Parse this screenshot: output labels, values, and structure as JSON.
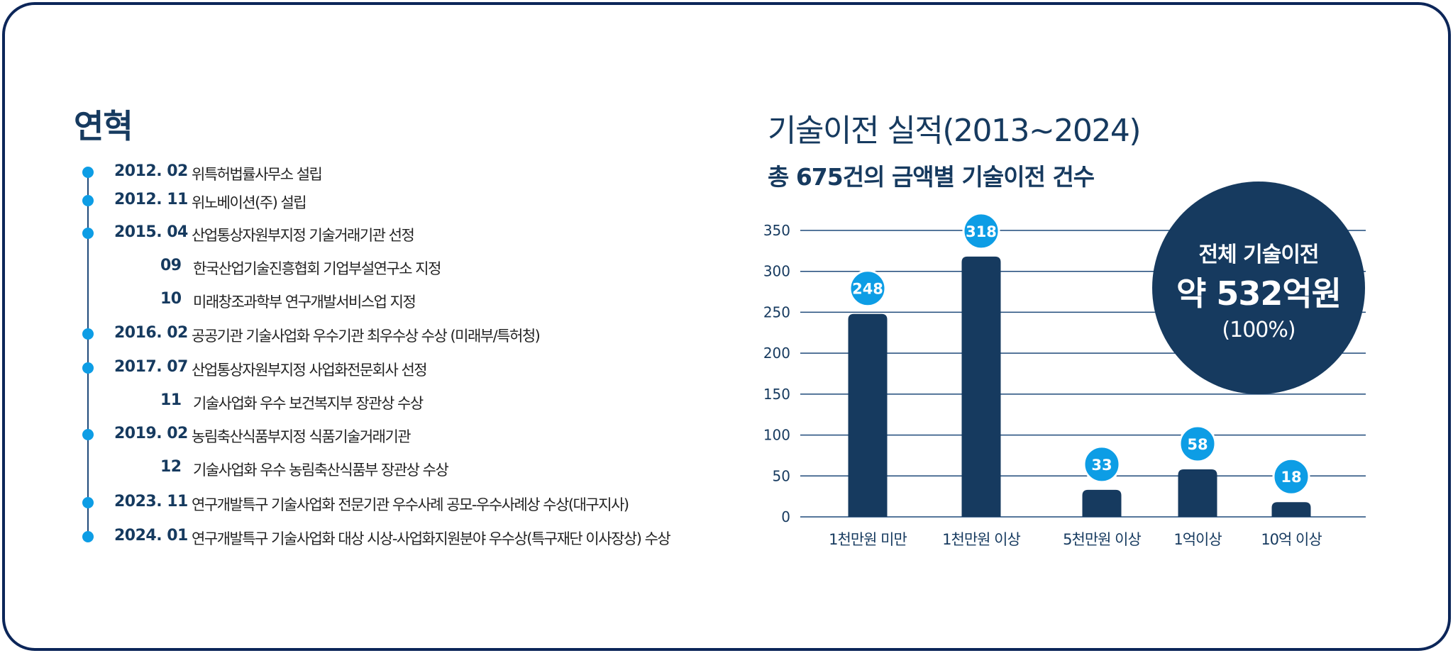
{
  "history": {
    "title": "연혁",
    "entries": [
      {
        "date": "2012. 02",
        "text": "위특허법률사무소 설립"
      },
      {
        "date": "2012. 11",
        "text": "위노베이션(주) 설립"
      },
      {
        "date": "2015. 04",
        "text": "산업통상자원부지정 기술거래기관 선정"
      },
      {
        "date": "09",
        "text": "한국산업기술진흥협회 기업부설연구소 지정"
      },
      {
        "date": "10",
        "text": "미래창조과학부 연구개발서비스업 지정"
      },
      {
        "date": "2016. 02",
        "text": "공공기관 기술사업화 우수기관 최우수상 수상 (미래부/특허청)"
      },
      {
        "date": "2017. 07",
        "text": "산업통상자원부지정 사업화전문회사 선정"
      },
      {
        "date": "11",
        "text": "기술사업화 우수 보건복지부 장관상 수상"
      },
      {
        "date": "2019. 02",
        "text": "농림축산식품부지정 식품기술거래기관"
      },
      {
        "date": "12",
        "text": "기술사업화 우수 농림축산식품부 장관상 수상"
      },
      {
        "date": "2023. 11",
        "text": "연구개발특구 기술사업화 전문기관 우수사례 공모-우수사례상 수상(대구지사)"
      },
      {
        "date": "2024. 01",
        "text": "연구개발특구 기술사업화 대상 시상-사업화지원분야 우수상(특구재단 이사장상) 수상"
      }
    ]
  },
  "chart_data": {
    "type": "bar",
    "title": "기술이전 실적(2013~2024)",
    "subtitle": "총 675건의 금액별 기술이전 건수",
    "categories": [
      "1천만원 미만",
      "1천만원 이상",
      "5천만원 이상",
      "1억이상",
      "10억 이상"
    ],
    "values": [
      248,
      318,
      33,
      58,
      18
    ],
    "ylim": [
      0,
      350
    ],
    "yticks": [
      0,
      50,
      100,
      150,
      200,
      250,
      300,
      350
    ],
    "grid": true,
    "bar_color": "#163a5f",
    "label_bubble_color": "#0d9de5"
  },
  "summary": {
    "label": "전체 기술이전",
    "value": "약 532억원",
    "percent": "(100%)"
  },
  "colors": {
    "navy": "#163a5f",
    "accent": "#0d9de5",
    "border": "#0c2659"
  }
}
